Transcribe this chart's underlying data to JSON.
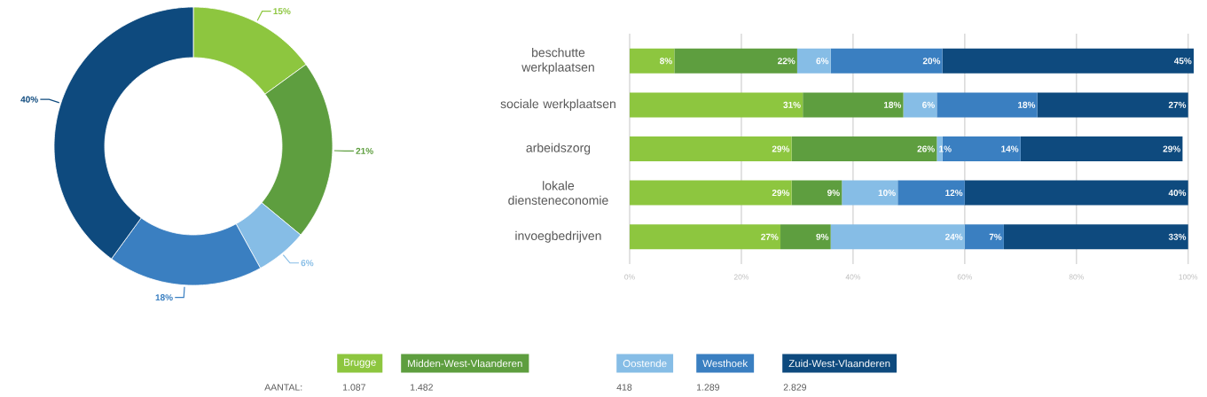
{
  "chart_data": [
    {
      "type": "donut",
      "categories": [
        null,
        null,
        null,
        null,
        null
      ],
      "values": [
        15,
        21,
        6,
        18,
        40
      ],
      "colors": [
        "#8dc63f",
        "#5e9e3f",
        "#86bde6",
        "#3a7fc1",
        "#0e4a7e"
      ],
      "value_labels": [
        "15%",
        "21%",
        "6%",
        "18%",
        "40%"
      ],
      "annotations": [
        "AANTAL:",
        "1.087",
        "1.482",
        "418",
        "1.289",
        "2.829"
      ]
    },
    {
      "type": "bar",
      "orientation": "horizontal",
      "stacked": true,
      "legend": "bottom",
      "grid": "x",
      "categories": [
        "beschutte werkplaatsen",
        "sociale werkplaatsen",
        "arbeidszorg",
        "lokale diensteneconomie",
        "invoegbedrijven"
      ],
      "xlim": [
        0,
        101
      ],
      "xticks": [
        {
          "value": 0,
          "label": "0%"
        },
        {
          "value": 20,
          "label": "20%"
        },
        {
          "value": 40,
          "label": "40%"
        },
        {
          "value": 60,
          "label": "60%"
        },
        {
          "value": 80,
          "label": "80%"
        },
        {
          "value": 100,
          "label": "100%"
        }
      ],
      "series": [
        {
          "name": "Brugge",
          "color": "#8dc63f",
          "values": [
            8,
            31,
            29,
            29,
            27
          ],
          "value_labels": [
            "8%",
            "31%",
            "29%",
            "29%",
            "27%"
          ]
        },
        {
          "name": "Midden-West-Vlaanderen",
          "color": "#5e9e3f",
          "values": [
            22,
            18,
            26,
            9,
            9
          ],
          "value_labels": [
            "22%",
            "18%",
            "26%",
            "9%",
            "9%"
          ]
        },
        {
          "name": "Oostende",
          "color": "#86bde6",
          "values": [
            6,
            6,
            1,
            10,
            24
          ],
          "value_labels": [
            "6%",
            "6%",
            "1%",
            "10%",
            "24%"
          ]
        },
        {
          "name": "Westhoek",
          "color": "#3a7fc1",
          "values": [
            20,
            18,
            14,
            12,
            7
          ],
          "value_labels": [
            "20%",
            "18%",
            "14%",
            "12%",
            "7%"
          ]
        },
        {
          "name": "Zuid-West-Vlaanderen",
          "color": "#0e4a7e",
          "values": [
            45,
            27,
            29,
            40,
            33
          ],
          "value_labels": [
            "45%",
            "27%",
            "29%",
            "40%",
            "33%"
          ]
        }
      ]
    }
  ]
}
